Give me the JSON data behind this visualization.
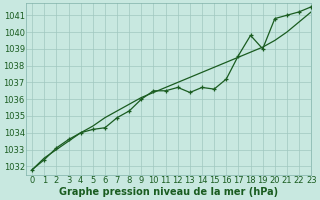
{
  "title": "Graphe pression niveau de la mer (hPa)",
  "bg_color": "#c8e8e0",
  "grid_color": "#a0c8c0",
  "line_color": "#1a5c20",
  "marker_color": "#1a5c20",
  "xlim": [
    -0.5,
    23
  ],
  "ylim": [
    1031.5,
    1041.7
  ],
  "yticks": [
    1032,
    1033,
    1034,
    1035,
    1036,
    1037,
    1038,
    1039,
    1040,
    1041
  ],
  "xticks": [
    0,
    1,
    2,
    3,
    4,
    5,
    6,
    7,
    8,
    9,
    10,
    11,
    12,
    13,
    14,
    15,
    16,
    17,
    18,
    19,
    20,
    21,
    22,
    23
  ],
  "x_data": [
    0,
    1,
    2,
    3,
    4,
    5,
    6,
    7,
    8,
    9,
    10,
    11,
    12,
    13,
    14,
    15,
    16,
    17,
    18,
    19,
    20,
    21,
    22,
    23
  ],
  "y_main": [
    1031.8,
    1032.4,
    1033.1,
    1033.6,
    1034.0,
    1034.2,
    1034.3,
    1034.9,
    1035.3,
    1036.0,
    1036.5,
    1036.5,
    1036.7,
    1036.4,
    1036.7,
    1036.6,
    1037.2,
    1038.6,
    1039.8,
    1039.0,
    1040.8,
    1041.0,
    1041.2,
    1041.5
  ],
  "y_smooth": [
    1031.8,
    1032.5,
    1033.0,
    1033.5,
    1034.0,
    1034.4,
    1034.9,
    1035.3,
    1035.7,
    1036.1,
    1036.4,
    1036.7,
    1037.0,
    1037.3,
    1037.6,
    1037.9,
    1038.2,
    1038.5,
    1038.8,
    1039.1,
    1039.5,
    1040.0,
    1040.6,
    1041.2
  ],
  "tick_fontsize": 6,
  "title_fontsize": 7,
  "title_color": "#1a5c20",
  "tick_color": "#1a5c20",
  "spine_color": "#80b0a8"
}
